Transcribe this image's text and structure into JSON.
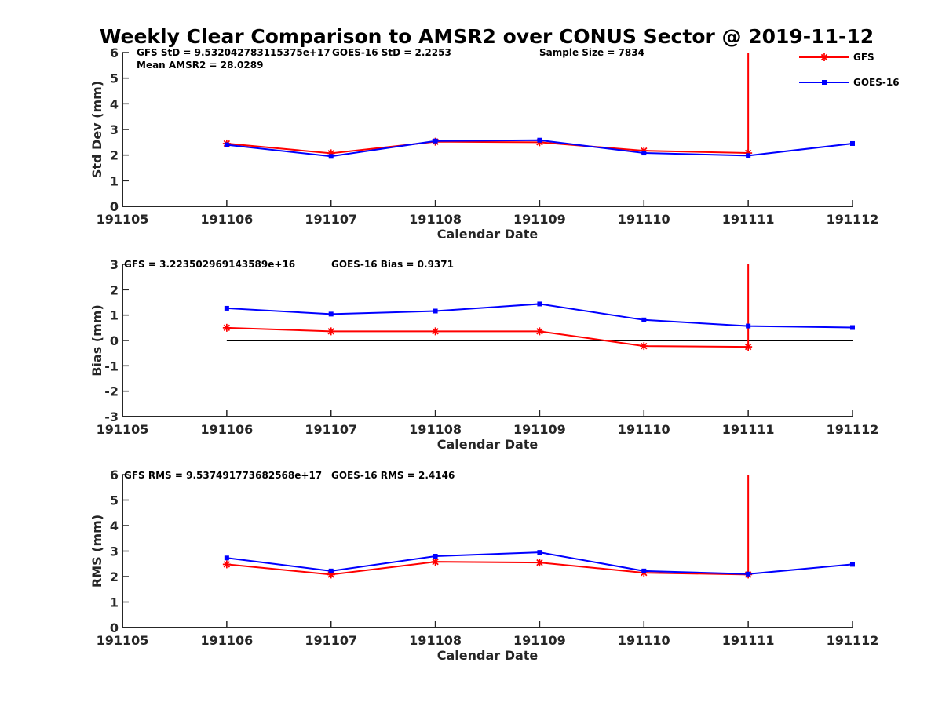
{
  "chart_data": {
    "title": "Weekly Clear Comparison to AMSR2 over CONUS Sector @ 2019-11-12",
    "legend": {
      "placement": "top-right",
      "entries": [
        {
          "name": "GFS",
          "color": "#ff0000",
          "marker": "asterisk"
        },
        {
          "name": "GOES-16",
          "color": "#0000ff",
          "marker": "square"
        }
      ]
    },
    "panels": [
      {
        "type": "line",
        "ylabel": "Std Dev (mm)",
        "xlabel": "Calendar Date",
        "xlim": [
          191105,
          191112
        ],
        "ylim": [
          0,
          6
        ],
        "xticks": [
          "191105",
          "191106",
          "191107",
          "191108",
          "191109",
          "191110",
          "191111",
          "191112"
        ],
        "yticks": [
          "0",
          "1",
          "2",
          "3",
          "4",
          "5",
          "6"
        ],
        "annotations": [
          "GFS StD = 9.532042783115375e+17",
          "GOES-16 StD = 2.2253",
          "Sample Size = 7834",
          "Mean AMSR2 = 28.0289"
        ],
        "series": [
          {
            "name": "GFS",
            "x": [
              191106,
              191107,
              191108,
              191109,
              191110,
              191111
            ],
            "y": [
              2.45,
              2.07,
              2.52,
              2.5,
              2.17,
              2.08
            ],
            "spike": {
              "x": 191111,
              "to": 6
            }
          },
          {
            "name": "GOES-16",
            "x": [
              191106,
              191107,
              191108,
              191109,
              191110,
              191111,
              191112
            ],
            "y": [
              2.4,
              1.95,
              2.55,
              2.58,
              2.08,
              1.98,
              2.45
            ]
          }
        ]
      },
      {
        "type": "line",
        "ylabel": "Bias (mm)",
        "xlabel": "Calendar Date",
        "xlim": [
          191105,
          191112
        ],
        "ylim": [
          -3,
          3
        ],
        "xticks": [
          "191105",
          "191106",
          "191107",
          "191108",
          "191109",
          "191110",
          "191111",
          "191112"
        ],
        "yticks": [
          "-3",
          "-2",
          "-1",
          "0",
          "1",
          "2",
          "3"
        ],
        "zero_line": true,
        "annotations": [
          "GFS = 3.223502969143589e+16",
          "GOES-16 Bias  = 0.9371"
        ],
        "series": [
          {
            "name": "GFS",
            "x": [
              191106,
              191107,
              191108,
              191109,
              191110,
              191111
            ],
            "y": [
              0.5,
              0.36,
              0.36,
              0.36,
              -0.22,
              -0.25
            ],
            "spike": {
              "x": 191111,
              "to": 3
            }
          },
          {
            "name": "GOES-16",
            "x": [
              191106,
              191107,
              191108,
              191109,
              191110,
              191111,
              191112
            ],
            "y": [
              1.27,
              1.04,
              1.16,
              1.44,
              0.81,
              0.57,
              0.51
            ]
          }
        ]
      },
      {
        "type": "line",
        "ylabel": "RMS (mm)",
        "xlabel": "Calendar Date",
        "xlim": [
          191105,
          191112
        ],
        "ylim": [
          0,
          6
        ],
        "xticks": [
          "191105",
          "191106",
          "191107",
          "191108",
          "191109",
          "191110",
          "191111",
          "191112"
        ],
        "yticks": [
          "0",
          "1",
          "2",
          "3",
          "4",
          "5",
          "6"
        ],
        "annotations": [
          "GFS RMS = 9.537491773682568e+17",
          "GOES-16 RMS = 2.4146"
        ],
        "series": [
          {
            "name": "GFS",
            "x": [
              191106,
              191107,
              191108,
              191109,
              191110,
              191111
            ],
            "y": [
              2.48,
              2.08,
              2.58,
              2.55,
              2.15,
              2.08
            ],
            "spike": {
              "x": 191111,
              "to": 6
            }
          },
          {
            "name": "GOES-16",
            "x": [
              191106,
              191107,
              191108,
              191109,
              191110,
              191111,
              191112
            ],
            "y": [
              2.73,
              2.22,
              2.8,
              2.95,
              2.22,
              2.1,
              2.48
            ]
          }
        ]
      }
    ]
  }
}
